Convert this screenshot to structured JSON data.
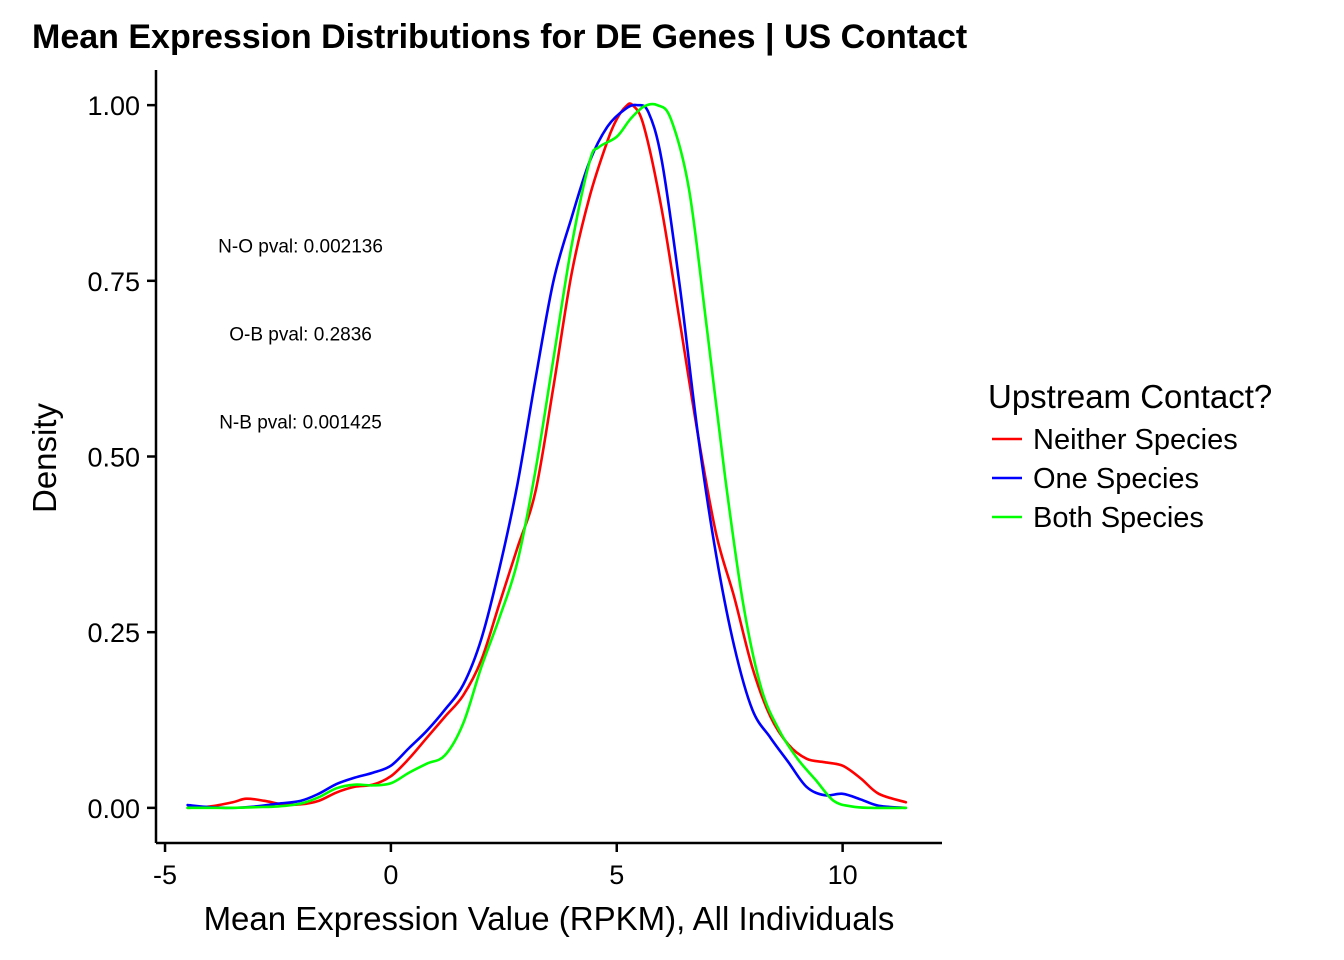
{
  "chart_data": {
    "type": "line",
    "title": "Mean Expression Distributions for DE Genes | US Contact",
    "xlabel": "Mean Expression Value (RPKM), All Individuals",
    "ylabel": "Density",
    "xlim": [
      -5.2,
      12.2
    ],
    "ylim": [
      -0.05,
      1.05
    ],
    "xticks": [
      -5,
      0,
      5,
      10
    ],
    "xtick_labels": [
      "-5",
      "0",
      "5",
      "10"
    ],
    "yticks": [
      0,
      0.25,
      0.5,
      0.75,
      1.0
    ],
    "ytick_labels": [
      "0.00",
      "0.25",
      "0.50",
      "0.75",
      "1.00"
    ],
    "grid": false,
    "legend": {
      "title": "Upstream Contact?",
      "placement": "right"
    },
    "annotations": [
      {
        "text": "N-O pval: 0.002136",
        "x": -2.0,
        "y": 0.8
      },
      {
        "text": "O-B pval: 0.2836",
        "x": -2.0,
        "y": 0.675
      },
      {
        "text": "N-B pval: 0.001425",
        "x": -2.0,
        "y": 0.55
      }
    ],
    "series": [
      {
        "name": "Neither Species",
        "color": "#ff0000",
        "x": [
          -4.5,
          -4.0,
          -3.5,
          -3.2,
          -2.8,
          -2.4,
          -2.0,
          -1.6,
          -1.2,
          -0.8,
          -0.4,
          0.0,
          0.4,
          0.8,
          1.2,
          1.6,
          2.0,
          2.4,
          2.8,
          3.2,
          3.6,
          4.0,
          4.4,
          4.8,
          5.0,
          5.2,
          5.35,
          5.6,
          6.0,
          6.4,
          6.8,
          7.2,
          7.6,
          8.0,
          8.4,
          8.8,
          9.2,
          9.6,
          10.0,
          10.4,
          10.8,
          11.4
        ],
        "y": [
          0.0,
          0.002,
          0.008,
          0.013,
          0.01,
          0.005,
          0.005,
          0.01,
          0.022,
          0.03,
          0.033,
          0.045,
          0.07,
          0.1,
          0.13,
          0.16,
          0.21,
          0.29,
          0.37,
          0.45,
          0.6,
          0.76,
          0.87,
          0.95,
          0.98,
          0.998,
          1.0,
          0.97,
          0.85,
          0.69,
          0.53,
          0.39,
          0.3,
          0.2,
          0.13,
          0.09,
          0.07,
          0.065,
          0.06,
          0.042,
          0.02,
          0.008
        ]
      },
      {
        "name": "One Species",
        "color": "#0000ff",
        "x": [
          -4.5,
          -4.0,
          -3.5,
          -3.0,
          -2.5,
          -2.0,
          -1.6,
          -1.2,
          -0.8,
          -0.4,
          0.0,
          0.4,
          0.8,
          1.2,
          1.6,
          2.0,
          2.4,
          2.8,
          3.2,
          3.6,
          4.0,
          4.4,
          4.8,
          5.2,
          5.45,
          5.7,
          6.0,
          6.4,
          6.8,
          7.2,
          7.6,
          8.0,
          8.4,
          8.8,
          9.2,
          9.6,
          10.0,
          10.4,
          10.8,
          11.4
        ],
        "y": [
          0.004,
          0.001,
          0.0,
          0.002,
          0.006,
          0.01,
          0.02,
          0.034,
          0.043,
          0.05,
          0.06,
          0.085,
          0.11,
          0.14,
          0.175,
          0.24,
          0.34,
          0.46,
          0.61,
          0.75,
          0.84,
          0.92,
          0.97,
          0.995,
          1.0,
          0.99,
          0.92,
          0.74,
          0.53,
          0.36,
          0.23,
          0.14,
          0.1,
          0.065,
          0.03,
          0.018,
          0.02,
          0.012,
          0.003,
          0.0
        ]
      },
      {
        "name": "Both Species",
        "color": "#00ff00",
        "x": [
          -4.5,
          -4.0,
          -3.5,
          -3.0,
          -2.5,
          -2.0,
          -1.6,
          -1.2,
          -0.8,
          -0.4,
          0.0,
          0.4,
          0.8,
          1.2,
          1.6,
          2.0,
          2.4,
          2.8,
          3.2,
          3.6,
          4.0,
          4.4,
          4.6,
          5.0,
          5.3,
          5.6,
          5.9,
          6.2,
          6.6,
          7.0,
          7.4,
          7.8,
          8.2,
          8.6,
          9.0,
          9.4,
          9.8,
          10.2,
          10.6,
          11.4
        ],
        "y": [
          0.0,
          0.0,
          0.0,
          0.001,
          0.002,
          0.006,
          0.015,
          0.028,
          0.033,
          0.032,
          0.035,
          0.05,
          0.063,
          0.075,
          0.12,
          0.2,
          0.27,
          0.35,
          0.48,
          0.64,
          0.8,
          0.92,
          0.94,
          0.955,
          0.98,
          0.998,
          1.0,
          0.98,
          0.88,
          0.68,
          0.47,
          0.29,
          0.17,
          0.11,
          0.07,
          0.04,
          0.01,
          0.002,
          0.0,
          0.0
        ]
      }
    ]
  }
}
